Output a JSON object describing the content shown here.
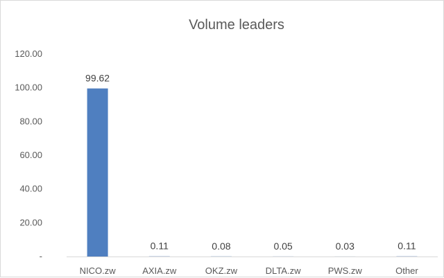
{
  "chart_data": {
    "type": "bar",
    "title": "Volume leaders",
    "xlabel": "",
    "ylabel": "",
    "categories": [
      "NICO.zw",
      "AXIA.zw",
      "OKZ.zw",
      "DLTA.zw",
      "PWS.zw",
      "Other"
    ],
    "values": [
      99.62,
      0.11,
      0.08,
      0.05,
      0.03,
      0.11
    ],
    "data_labels": [
      "99.62",
      "0.11",
      "0.08",
      "0.05",
      "0.03",
      "0.11"
    ],
    "ylim": [
      0,
      120
    ],
    "y_ticks": [
      0,
      20,
      40,
      60,
      80,
      100,
      120
    ],
    "y_tick_labels": [
      "-",
      "20.00",
      "40.00",
      "60.00",
      "80.00",
      "100.00",
      "120.00"
    ],
    "grid": false,
    "legend": "none",
    "bar_color": "#4f7fc0"
  }
}
